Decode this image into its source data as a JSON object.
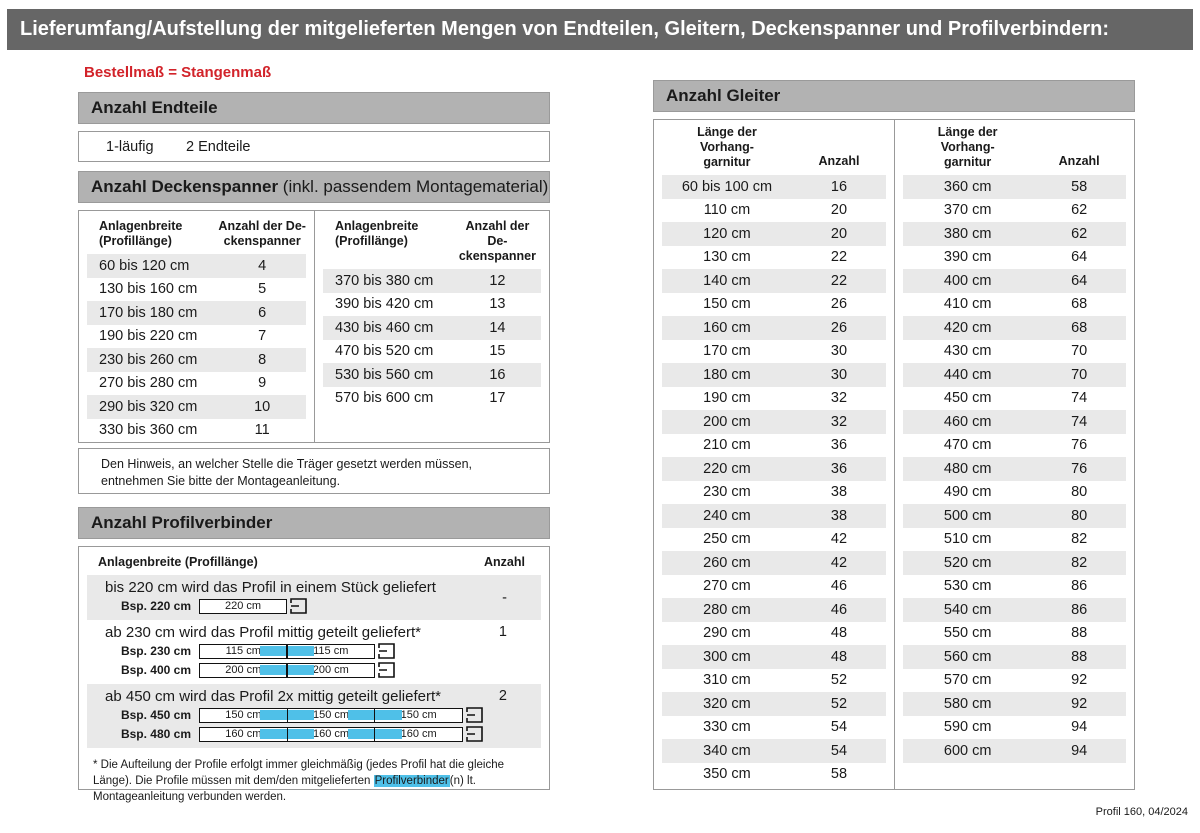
{
  "page": {
    "title": "Lieferumfang/Aufstellung der mitgelieferten Mengen von Endteilen, Gleitern, Deckenspanner und Profilverbindern:",
    "subtitle": "Bestellmaß = Stangenmaß",
    "footer": "Profil 160, 04/2024"
  },
  "endteile": {
    "heading": "Anzahl Endteile",
    "row": {
      "label": "1-läufig",
      "value": "2 Endteile"
    }
  },
  "deckenspanner": {
    "heading_bold": "Anzahl Deckenspanner",
    "heading_rest": " (inkl. passendem Montagematerial)",
    "col1_header": "Anlagenbreite\n(Profillänge)",
    "col2_header": "Anzahl der De-\nckenspanner",
    "left_rows": [
      {
        "label": "60 bis 120 cm",
        "value": "4"
      },
      {
        "label": "130 bis 160 cm",
        "value": "5"
      },
      {
        "label": "170 bis 180 cm",
        "value": "6"
      },
      {
        "label": "190 bis 220 cm",
        "value": "7"
      },
      {
        "label": "230 bis 260 cm",
        "value": "8"
      },
      {
        "label": "270 bis 280 cm",
        "value": "9"
      },
      {
        "label": "290 bis 320 cm",
        "value": "10"
      },
      {
        "label": "330 bis 360 cm",
        "value": "11"
      }
    ],
    "right_rows": [
      {
        "label": "370 bis 380 cm",
        "value": "12"
      },
      {
        "label": "390 bis 420 cm",
        "value": "13"
      },
      {
        "label": "430 bis 460 cm",
        "value": "14"
      },
      {
        "label": "470 bis 520 cm",
        "value": "15"
      },
      {
        "label": "530 bis 560 cm",
        "value": "16"
      },
      {
        "label": "570 bis 600 cm",
        "value": "17"
      }
    ],
    "note": "Den Hinweis, an welcher Stelle die Träger gesetzt werden müssen, entnehmen Sie bitte der Montageanleitung."
  },
  "profilverbinder": {
    "heading": "Anzahl Profilverbinder",
    "col1_header": "Anlagenbreite (Profillänge)",
    "col2_header": "Anzahl",
    "groups": [
      {
        "text": "bis 220 cm wird das Profil in einem Stück geliefert",
        "anzahl": "-",
        "examples": [
          {
            "label": "Bsp. 220 cm",
            "segments": [
              "220 cm"
            ]
          }
        ]
      },
      {
        "text": "ab 230 cm wird das Profil mittig geteilt geliefert*",
        "anzahl": "1",
        "examples": [
          {
            "label": "Bsp. 230 cm",
            "segments": [
              "115 cm",
              "115 cm"
            ]
          },
          {
            "label": "Bsp. 400 cm",
            "segments": [
              "200 cm",
              "200 cm"
            ]
          }
        ]
      },
      {
        "text": "ab 450 cm wird das Profil 2x mittig geteilt geliefert*",
        "anzahl": "2",
        "examples": [
          {
            "label": "Bsp. 450 cm",
            "segments": [
              "150 cm",
              "150 cm",
              "150 cm"
            ]
          },
          {
            "label": "Bsp. 480 cm",
            "segments": [
              "160 cm",
              "160 cm",
              "160 cm"
            ]
          }
        ]
      }
    ],
    "footnote_pre": "* Die Aufteilung der Profile erfolgt immer gleichmäßig (jedes Profil hat die gleiche Länge). Die Profile müssen mit dem/den mitgelieferten ",
    "footnote_highlight": "Profilverbinder",
    "footnote_post": "(n) lt. Montageanleitung verbunden werden."
  },
  "gleiter": {
    "heading": "Anzahl Gleiter",
    "col1_header": "Länge der\nVorhang-\ngarnitur",
    "col2_header": "Anzahl",
    "left_rows": [
      {
        "label": "60 bis 100 cm",
        "value": "16"
      },
      {
        "label": "110 cm",
        "value": "20"
      },
      {
        "label": "120 cm",
        "value": "20"
      },
      {
        "label": "130 cm",
        "value": "22"
      },
      {
        "label": "140 cm",
        "value": "22"
      },
      {
        "label": "150 cm",
        "value": "26"
      },
      {
        "label": "160 cm",
        "value": "26"
      },
      {
        "label": "170 cm",
        "value": "30"
      },
      {
        "label": "180 cm",
        "value": "30"
      },
      {
        "label": "190 cm",
        "value": "32"
      },
      {
        "label": "200 cm",
        "value": "32"
      },
      {
        "label": "210 cm",
        "value": "36"
      },
      {
        "label": "220 cm",
        "value": "36"
      },
      {
        "label": "230 cm",
        "value": "38"
      },
      {
        "label": "240 cm",
        "value": "38"
      },
      {
        "label": "250 cm",
        "value": "42"
      },
      {
        "label": "260 cm",
        "value": "42"
      },
      {
        "label": "270 cm",
        "value": "46"
      },
      {
        "label": "280 cm",
        "value": "46"
      },
      {
        "label": "290 cm",
        "value": "48"
      },
      {
        "label": "300 cm",
        "value": "48"
      },
      {
        "label": "310 cm",
        "value": "52"
      },
      {
        "label": "320 cm",
        "value": "52"
      },
      {
        "label": "330 cm",
        "value": "54"
      },
      {
        "label": "340 cm",
        "value": "54"
      },
      {
        "label": "350 cm",
        "value": "58"
      }
    ],
    "right_rows": [
      {
        "label": "360 cm",
        "value": "58"
      },
      {
        "label": "370 cm",
        "value": "62"
      },
      {
        "label": "380 cm",
        "value": "62"
      },
      {
        "label": "390 cm",
        "value": "64"
      },
      {
        "label": "400 cm",
        "value": "64"
      },
      {
        "label": "410 cm",
        "value": "68"
      },
      {
        "label": "420 cm",
        "value": "68"
      },
      {
        "label": "430 cm",
        "value": "70"
      },
      {
        "label": "440 cm",
        "value": "70"
      },
      {
        "label": "450 cm",
        "value": "74"
      },
      {
        "label": "460 cm",
        "value": "74"
      },
      {
        "label": "470 cm",
        "value": "76"
      },
      {
        "label": "480 cm",
        "value": "76"
      },
      {
        "label": "490 cm",
        "value": "80"
      },
      {
        "label": "500 cm",
        "value": "80"
      },
      {
        "label": "510 cm",
        "value": "82"
      },
      {
        "label": "520 cm",
        "value": "82"
      },
      {
        "label": "530 cm",
        "value": "86"
      },
      {
        "label": "540 cm",
        "value": "86"
      },
      {
        "label": "550 cm",
        "value": "88"
      },
      {
        "label": "560 cm",
        "value": "88"
      },
      {
        "label": "570 cm",
        "value": "92"
      },
      {
        "label": "580 cm",
        "value": "92"
      },
      {
        "label": "590 cm",
        "value": "94"
      },
      {
        "label": "600 cm",
        "value": "94"
      }
    ]
  },
  "colors": {
    "accent_red": "#d2232a",
    "connector_blue": "#4fc0e8",
    "highlight_blue": "#4fc0e8",
    "titlebar_gray": "#666666",
    "section_header_gray": "#b2b2b2",
    "row_shade": "#e9e9e9"
  }
}
